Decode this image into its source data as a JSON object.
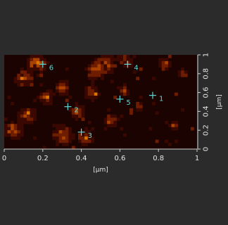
{
  "image_map": {
    "x_axis": {
      "label": "[μm]",
      "ticks": [
        "0",
        "0.2",
        "0.4",
        "0.6",
        "0.8",
        "1"
      ],
      "range": [
        0,
        1
      ]
    },
    "y_axis": {
      "label": "[μm]",
      "ticks": [
        "0",
        "0.2",
        "0.4",
        "0.6",
        "0.8",
        "1"
      ],
      "range": [
        0,
        1
      ]
    },
    "colormap": [
      "#1a0300",
      "#3a0800",
      "#6e1d00",
      "#a94100",
      "#d97500",
      "#f2b233",
      "#fff0b0",
      "#ffffff"
    ],
    "marker_color": "#5fd7d7",
    "markers": [
      {
        "id": "1",
        "x": 0.77,
        "y": 0.57
      },
      {
        "id": "2",
        "x": 0.33,
        "y": 0.45
      },
      {
        "id": "3",
        "x": 0.4,
        "y": 0.18
      },
      {
        "id": "4",
        "x": 0.64,
        "y": 0.9
      },
      {
        "id": "5",
        "x": 0.6,
        "y": 0.53
      },
      {
        "id": "6",
        "x": 0.2,
        "y": 0.9
      }
    ]
  }
}
